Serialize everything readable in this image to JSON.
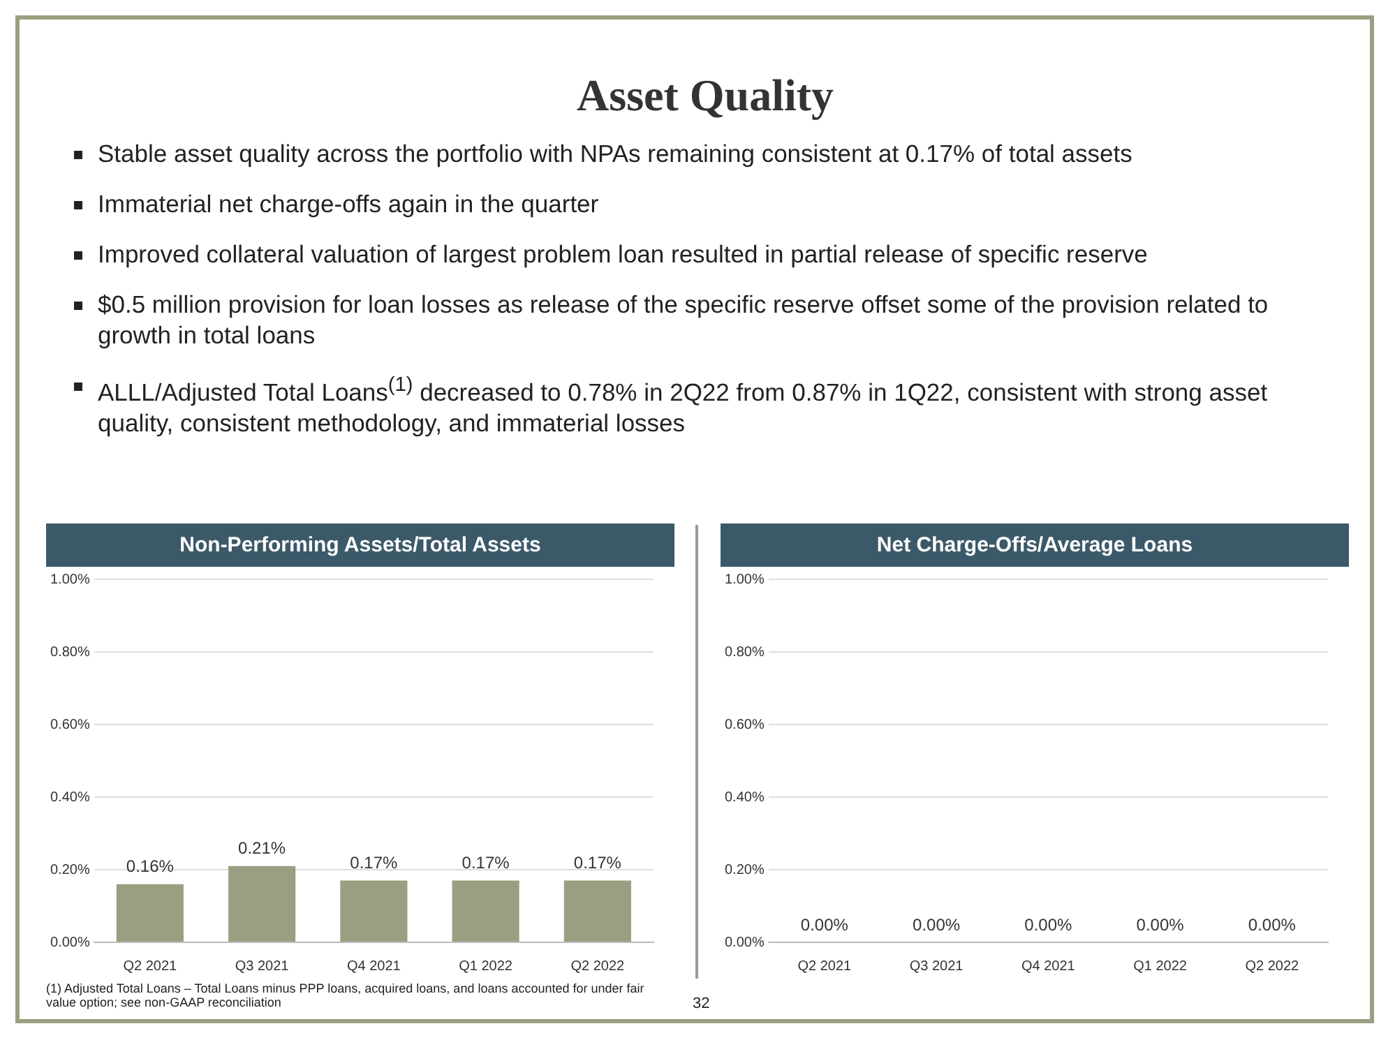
{
  "chart_data": [
    {
      "type": "other",
      "title": "Asset Quality",
      "annotations": [
        "Stable asset quality across the portfolio with NPAs remaining consistent at 0.17% of total assets",
        "Immaterial net charge-offs again in the quarter",
        "Improved collateral valuation of largest problem loan resulted in partial release of specific reserve",
        "$0.5 million provision for loan losses as release of the specific reserve offset some of the provision related to growth in total loans",
        "ALLL/Adjusted Total Loans$^{(1)}$ decreased to 0.78% in 2Q22 from 0.87% in 1Q22, consistent with strong asset quality, consistent methodology, and immaterial losses"
      ]
    },
    {
      "type": "bar",
      "title": "Non-Performing Assets/Total Assets",
      "categories": [
        "Q2 2021",
        "Q3 2021",
        "Q4 2021",
        "Q1 2022",
        "Q2 2022"
      ],
      "values": [
        0.16,
        0.21,
        0.17,
        0.17,
        0.17
      ],
      "value_labels": [
        "0.16%",
        "0.21%",
        "0.17%",
        "0.17%",
        "0.17%"
      ],
      "color": "#9b9f81",
      "ylim": [
        0,
        1
      ],
      "yticks": [
        {
          "value": 0,
          "label": "0.00%"
        },
        {
          "value": 0.2,
          "label": "0.20%"
        },
        {
          "value": 0.4,
          "label": "0.40%"
        },
        {
          "value": 0.6,
          "label": "0.60%"
        },
        {
          "value": 0.8,
          "label": "0.80%"
        },
        {
          "value": 1,
          "label": "1.00%"
        }
      ],
      "grid": "y",
      "legend": false,
      "annotations": [
        "(1) Adjusted Total Loans – Total Loans minus PPP loans, acquired loans, and loans accounted for under fair value option; see non-GAAP reconciliation",
        "32"
      ]
    },
    {
      "type": "bar",
      "title": "Net Charge-Offs/Average Loans",
      "categories": [
        "Q2 2021",
        "Q3 2021",
        "Q4 2021",
        "Q1 2022",
        "Q2 2022"
      ],
      "values": [
        0,
        0,
        0,
        0,
        0
      ],
      "value_labels": [
        "0.00%",
        "0.00%",
        "0.00%",
        "0.00%",
        "0.00%"
      ],
      "color": "#9b9f81",
      "ylim": [
        0,
        1
      ],
      "yticks": [
        {
          "value": 0,
          "label": "0.00%"
        },
        {
          "value": 0.2,
          "label": "0.20%"
        },
        {
          "value": 0.4,
          "label": "0.40%"
        },
        {
          "value": 0.6,
          "label": "0.60%"
        },
        {
          "value": 0.8,
          "label": "0.80%"
        },
        {
          "value": 1,
          "label": "1.00%"
        }
      ],
      "grid": "y",
      "legend": false
    }
  ]
}
